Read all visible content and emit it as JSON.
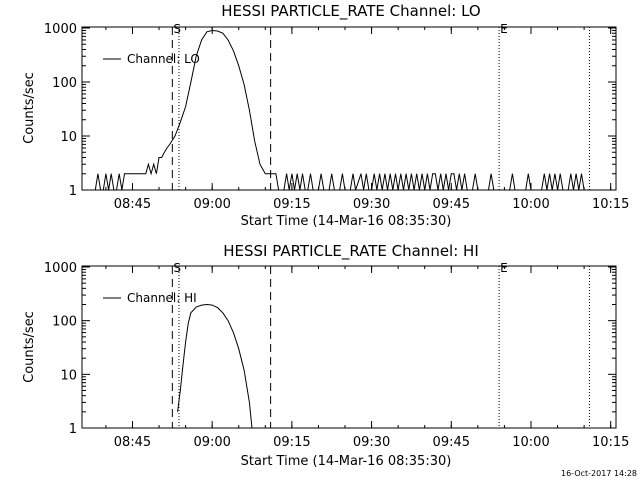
{
  "figure": {
    "timestamp": "16-Oct-2017 14:28"
  },
  "chart_data": [
    {
      "type": "line",
      "title": "HESSI PARTICLE_RATE Channel: LO",
      "xlabel": "Start Time (14-Mar-16 08:35:30)",
      "ylabel": "Counts/sec",
      "xlim": [
        "08:35:30",
        "10:16:00"
      ],
      "ylim": [
        1,
        1000
      ],
      "yscale": "log",
      "x_ticks": [
        "08:45",
        "09:00",
        "09:15",
        "09:30",
        "09:45",
        "10:00",
        "10:15"
      ],
      "y_ticks": [
        "1",
        "10",
        "100",
        "1000"
      ],
      "legend": {
        "location": "top-left",
        "entries": [
          "Channel: LO"
        ]
      },
      "markers": [
        {
          "time": "08:52:30",
          "style": "dashed",
          "label": "S"
        },
        {
          "time": "08:53:45",
          "style": "dotted",
          "label": ""
        },
        {
          "time": "09:11:00",
          "style": "dashed",
          "label": ""
        },
        {
          "time": "09:54:00",
          "style": "dotted",
          "label": "E"
        },
        {
          "time": "10:11:00",
          "style": "dotted",
          "label": ""
        }
      ],
      "series": [
        {
          "name": "Channel: LO",
          "points": [
            [
              "08:38:00",
              1
            ],
            [
              "08:38:30",
              2
            ],
            [
              "08:39:00",
              1
            ],
            [
              "08:39:30",
              1
            ],
            [
              "08:40:00",
              2
            ],
            [
              "08:40:30",
              1
            ],
            [
              "08:41:00",
              2
            ],
            [
              "08:41:30",
              1
            ],
            [
              "08:42:00",
              1
            ],
            [
              "08:42:30",
              2
            ],
            [
              "08:43:00",
              1
            ],
            [
              "08:43:30",
              2
            ],
            [
              "08:44:00",
              2
            ],
            [
              "08:45:00",
              2
            ],
            [
              "08:45:30",
              2
            ],
            [
              "08:46:00",
              2
            ],
            [
              "08:47:00",
              2
            ],
            [
              "08:47:30",
              2
            ],
            [
              "08:48:00",
              3
            ],
            [
              "08:48:30",
              2
            ],
            [
              "08:49:00",
              3
            ],
            [
              "08:49:30",
              2
            ],
            [
              "08:50:00",
              4
            ],
            [
              "08:50:30",
              4
            ],
            [
              "08:51:00",
              5
            ],
            [
              "08:51:30",
              6
            ],
            [
              "08:52:00",
              7
            ],
            [
              "08:53:00",
              10
            ],
            [
              "08:54:00",
              18
            ],
            [
              "08:55:00",
              35
            ],
            [
              "08:56:00",
              100
            ],
            [
              "08:57:00",
              300
            ],
            [
              "08:58:00",
              600
            ],
            [
              "08:59:00",
              850
            ],
            [
              "09:00:00",
              900
            ],
            [
              "09:01:00",
              880
            ],
            [
              "09:02:00",
              800
            ],
            [
              "09:03:00",
              600
            ],
            [
              "09:04:00",
              380
            ],
            [
              "09:05:00",
              200
            ],
            [
              "09:06:00",
              90
            ],
            [
              "09:07:00",
              30
            ],
            [
              "09:08:00",
              8
            ],
            [
              "09:09:00",
              3
            ],
            [
              "09:10:00",
              2
            ],
            [
              "09:11:00",
              2
            ],
            [
              "09:12:00",
              2
            ],
            [
              "09:12:30",
              1
            ],
            [
              "09:13:00",
              1
            ],
            [
              "09:13:30",
              1
            ],
            [
              "09:14:00",
              2
            ],
            [
              "09:14:30",
              1
            ],
            [
              "09:15:00",
              2
            ],
            [
              "09:15:30",
              1
            ],
            [
              "09:16:00",
              2
            ],
            [
              "09:16:30",
              1
            ],
            [
              "09:17:00",
              2
            ],
            [
              "09:17:30",
              1
            ],
            [
              "09:18:00",
              1
            ],
            [
              "09:18:30",
              2
            ],
            [
              "09:19:00",
              1
            ],
            [
              "09:19:30",
              1
            ],
            [
              "09:20:00",
              1
            ],
            [
              "09:20:30",
              2
            ],
            [
              "09:21:00",
              1
            ],
            [
              "09:22:00",
              1
            ],
            [
              "09:22:30",
              2
            ],
            [
              "09:23:00",
              1
            ],
            [
              "09:24:00",
              1
            ],
            [
              "09:24:30",
              2
            ],
            [
              "09:25:00",
              1
            ],
            [
              "09:26:00",
              1
            ],
            [
              "09:26:30",
              2
            ],
            [
              "09:27:00",
              1
            ],
            [
              "09:28:00",
              2
            ],
            [
              "09:28:30",
              1
            ],
            [
              "09:29:00",
              2
            ],
            [
              "09:29:30",
              1
            ],
            [
              "09:30:00",
              1
            ],
            [
              "09:30:30",
              2
            ],
            [
              "09:31:00",
              1
            ],
            [
              "09:31:30",
              2
            ],
            [
              "09:32:00",
              1
            ],
            [
              "09:32:30",
              2
            ],
            [
              "09:33:00",
              1
            ],
            [
              "09:33:30",
              2
            ],
            [
              "09:34:00",
              1
            ],
            [
              "09:34:30",
              2
            ],
            [
              "09:35:00",
              1
            ],
            [
              "09:35:30",
              2
            ],
            [
              "09:36:00",
              1
            ],
            [
              "09:36:30",
              2
            ],
            [
              "09:37:00",
              1
            ],
            [
              "09:37:30",
              2
            ],
            [
              "09:38:00",
              1
            ],
            [
              "09:38:30",
              2
            ],
            [
              "09:39:00",
              1
            ],
            [
              "09:39:30",
              2
            ],
            [
              "09:40:00",
              1
            ],
            [
              "09:40:30",
              2
            ],
            [
              "09:41:00",
              1
            ],
            [
              "09:41:30",
              2
            ],
            [
              "09:42:00",
              2
            ],
            [
              "09:42:30",
              1
            ],
            [
              "09:43:00",
              2
            ],
            [
              "09:43:30",
              1
            ],
            [
              "09:44:00",
              2
            ],
            [
              "09:44:30",
              1
            ],
            [
              "09:45:00",
              2
            ],
            [
              "09:45:30",
              2
            ],
            [
              "09:46:00",
              1
            ],
            [
              "09:46:30",
              2
            ],
            [
              "09:47:00",
              1
            ],
            [
              "09:47:30",
              2
            ],
            [
              "09:48:00",
              1
            ],
            [
              "09:49:00",
              1
            ],
            [
              "09:49:30",
              2
            ],
            [
              "09:50:00",
              1
            ],
            [
              "09:52:00",
              1
            ],
            [
              "09:52:30",
              2
            ],
            [
              "09:53:00",
              1
            ],
            [
              "09:56:00",
              1
            ],
            [
              "09:56:30",
              2
            ],
            [
              "09:57:00",
              1
            ],
            [
              "09:59:00",
              1
            ],
            [
              "09:59:30",
              2
            ],
            [
              "10:00:00",
              1
            ],
            [
              "10:02:00",
              1
            ],
            [
              "10:02:30",
              2
            ],
            [
              "10:03:00",
              1
            ],
            [
              "10:03:30",
              2
            ],
            [
              "10:04:00",
              1
            ],
            [
              "10:04:30",
              2
            ],
            [
              "10:05:00",
              1
            ],
            [
              "10:05:30",
              2
            ],
            [
              "10:06:00",
              1
            ],
            [
              "10:07:00",
              1
            ],
            [
              "10:07:30",
              2
            ],
            [
              "10:08:00",
              1
            ],
            [
              "10:08:30",
              2
            ],
            [
              "10:09:00",
              1
            ],
            [
              "10:09:30",
              2
            ],
            [
              "10:10:00",
              1
            ]
          ]
        }
      ]
    },
    {
      "type": "line",
      "title": "HESSI PARTICLE_RATE Channel: HI",
      "xlabel": "Start Time (14-Mar-16 08:35:30)",
      "ylabel": "Counts/sec",
      "xlim": [
        "08:35:30",
        "10:16:00"
      ],
      "ylim": [
        1,
        1000
      ],
      "yscale": "log",
      "x_ticks": [
        "08:45",
        "09:00",
        "09:15",
        "09:30",
        "09:45",
        "10:00",
        "10:15"
      ],
      "y_ticks": [
        "1",
        "10",
        "100",
        "1000"
      ],
      "legend": {
        "location": "top-left",
        "entries": [
          "Channel: HI"
        ]
      },
      "markers": [
        {
          "time": "08:52:30",
          "style": "dashed",
          "label": "S"
        },
        {
          "time": "08:53:45",
          "style": "dotted",
          "label": ""
        },
        {
          "time": "09:11:00",
          "style": "dashed",
          "label": ""
        },
        {
          "time": "09:54:00",
          "style": "dotted",
          "label": "E"
        },
        {
          "time": "10:11:00",
          "style": "dotted",
          "label": ""
        }
      ],
      "series": [
        {
          "name": "Channel: HI",
          "points": [
            [
              "08:53:30",
              2
            ],
            [
              "08:54:00",
              5
            ],
            [
              "08:54:30",
              15
            ],
            [
              "08:55:00",
              40
            ],
            [
              "08:55:30",
              90
            ],
            [
              "08:56:00",
              140
            ],
            [
              "08:57:00",
              180
            ],
            [
              "08:58:00",
              195
            ],
            [
              "08:59:00",
              200
            ],
            [
              "09:00:00",
              195
            ],
            [
              "09:01:00",
              175
            ],
            [
              "09:02:00",
              140
            ],
            [
              "09:03:00",
              100
            ],
            [
              "09:04:00",
              60
            ],
            [
              "09:05:00",
              30
            ],
            [
              "09:06:00",
              12
            ],
            [
              "09:07:00",
              3
            ],
            [
              "09:07:30",
              1
            ]
          ]
        }
      ]
    }
  ]
}
